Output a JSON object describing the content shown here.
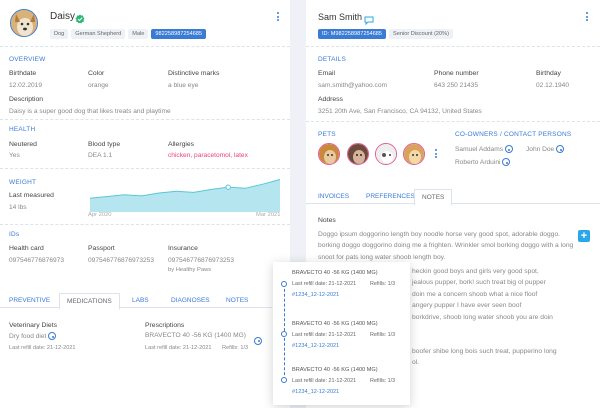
{
  "pet": {
    "name": "Daisy",
    "chips": [
      "Dog",
      "German Shepherd",
      "Male"
    ],
    "id_chip": "982258987254685"
  },
  "overview": {
    "title": "OVERVIEW",
    "birthdate_label": "Birthdate",
    "birthdate": "12.02.2019",
    "color_label": "Color",
    "color": "orange",
    "marks_label": "Distinctive marks",
    "marks": "a blue eye",
    "description_label": "Description",
    "description": "Daisy is a super good dog that likes treats and playtime"
  },
  "health": {
    "title": "HEALTH",
    "neutered_label": "Neutered",
    "neutered": "Yes",
    "blood_label": "Blood type",
    "blood": "DEA 1.1",
    "allergies_label": "Allergies",
    "allergies": "chicken, paracetomol, latex"
  },
  "weight": {
    "title": "WEIGHT",
    "last_label": "Last measured",
    "last_value": "14 lbs",
    "start_label": "Apr 2020",
    "end_label": "Mar 2021"
  },
  "chart_data": {
    "type": "area",
    "x": [
      "Apr 2020",
      "",
      "",
      "",
      "",
      "",
      "",
      "",
      "",
      "",
      "",
      "Mar 2021"
    ],
    "values": [
      2,
      2.3,
      2.6,
      2.4,
      2.9,
      3.2,
      3.0,
      3.5,
      3.9,
      3.7,
      4.4,
      5.2
    ],
    "highlight_index": 8,
    "color": "#5bc6d9"
  },
  "ids": {
    "title": "IDs",
    "health_label": "Health card",
    "health": "097546776876973",
    "passport_label": "Passport",
    "passport": "097546776876973253",
    "insurance_label": "Insurance",
    "insurance": "097546776876973253",
    "insurance_by": "by Healthy Paws"
  },
  "left_tabs": [
    "PREVENTIVE",
    "MEDICATIONS",
    "LABS",
    "DIAGNOSES",
    "NOTES"
  ],
  "medications": {
    "diets_label": "Veterinary Diets",
    "diet": "Dry food diet",
    "diet_refill": "Last refill date: 21-12-2021",
    "rx_label": "Prescriptions",
    "rx": "BRAVECTO 40 -56 KG (1400 MG)",
    "rx_refill": "Last refill date: 21-12-2021",
    "rx_refills": "Refills: 1/3"
  },
  "popup": {
    "items": [
      {
        "title": "BRAVECTO 40 -56 KG (1400 MG)",
        "refill": "Last refill date: 21-12-2021",
        "refills": "Refills: 1/3",
        "link": "#1234_12-12-2021"
      },
      {
        "title": "BRAVECTO 40 -56 KG (1400 MG)",
        "refill": "Last refill date: 21-12-2021",
        "refills": "Refills: 1/3",
        "link": "#1234_12-12-2021"
      },
      {
        "title": "BRAVECTO 40 -56 KG (1400 MG)",
        "refill": "Last refill date: 21-12-2021",
        "refills": "Refills: 1/3",
        "link": "#1234_12-12-2021"
      }
    ]
  },
  "owner": {
    "name": "Sam Smith",
    "id_chip": "ID: M982258987254685",
    "discount_chip": "Senior Discount (20%)"
  },
  "details": {
    "title": "DETAILS",
    "email_label": "Email",
    "email": "sam.smith@yahoo.com",
    "phone_label": "Phone number",
    "phone": "643 250 21435",
    "birthday_label": "Birthday",
    "birthday": "02.12.1940",
    "address_label": "Address",
    "address": "3251 20th Ave, San Francisco, CA 94132, United States"
  },
  "pets": {
    "title": "PETS"
  },
  "coowners": {
    "title": "CO-OWNERS / CONTACT PERSONS",
    "names": [
      "Samuel Addams",
      "John Doe",
      "Roberto Arduini"
    ]
  },
  "right_tabs": [
    "INVOICES",
    "PREFERENCES",
    "NOTES"
  ],
  "notes": {
    "title": "Notes",
    "para1": "Doggo ipsum doggorino length boy noodle horse very good spot, adorable doggo. borking doggo doggorino doing me a frighten. Wrinkler smol borking doggo with a long snoot for pats long water shoob length boy.",
    "para2": "heckin good boys and girls very good spot,",
    "para3": "jealous pupper, bork! such treat big ol pupper",
    "para4": "doin me a concern shoob what a nice floof",
    "para5": "angery pupper I have ever seen boof",
    "para6": "borkdrive, shoob long water shoob you are doin",
    "para7": "boofer shibe long bois such treat, pupperino long",
    "para8": "ol."
  },
  "colors": {
    "accent": "#3a7bd5",
    "allergy": "#e8437a",
    "teal": "#5bc6d9",
    "fab": "#2aa7e6"
  }
}
